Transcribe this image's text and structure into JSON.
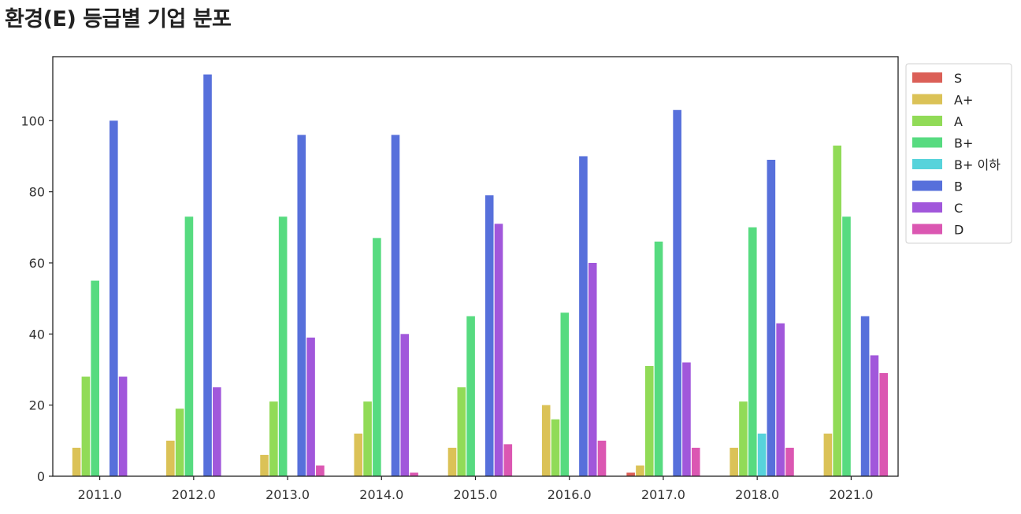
{
  "chart_data": {
    "type": "bar",
    "title": "환경(E) 등급별 기업 분포",
    "xlabel": "",
    "ylabel": "",
    "categories": [
      "2011.0",
      "2012.0",
      "2013.0",
      "2014.0",
      "2015.0",
      "2016.0",
      "2017.0",
      "2018.0",
      "2021.0"
    ],
    "ylim": [
      0,
      118
    ],
    "yticks": [
      "0",
      "20",
      "40",
      "60",
      "80",
      "100"
    ],
    "legend_position": "outside-top-right",
    "grid": false,
    "series": [
      {
        "name": "S",
        "color": "#db5f57",
        "values": [
          0,
          0,
          0,
          0,
          0,
          0,
          1,
          0,
          0
        ]
      },
      {
        "name": "A+",
        "color": "#dbc257",
        "values": [
          8,
          10,
          6,
          12,
          8,
          20,
          3,
          8,
          12
        ]
      },
      {
        "name": "A",
        "color": "#91db57",
        "values": [
          28,
          19,
          21,
          21,
          25,
          16,
          31,
          21,
          93
        ]
      },
      {
        "name": "B+",
        "color": "#57db80",
        "values": [
          55,
          73,
          73,
          67,
          45,
          46,
          66,
          70,
          73
        ]
      },
      {
        "name": "B+ 이하",
        "color": "#57d3db",
        "values": [
          0,
          0,
          0,
          0,
          0,
          0,
          0,
          12,
          0
        ]
      },
      {
        "name": "B",
        "color": "#5770db",
        "values": [
          100,
          113,
          96,
          96,
          79,
          90,
          103,
          89,
          45
        ]
      },
      {
        "name": "C",
        "color": "#a157db",
        "values": [
          28,
          25,
          39,
          40,
          71,
          60,
          32,
          43,
          34
        ]
      },
      {
        "name": "D",
        "color": "#db57b2",
        "values": [
          0,
          0,
          3,
          1,
          9,
          10,
          8,
          8,
          29
        ]
      }
    ]
  }
}
